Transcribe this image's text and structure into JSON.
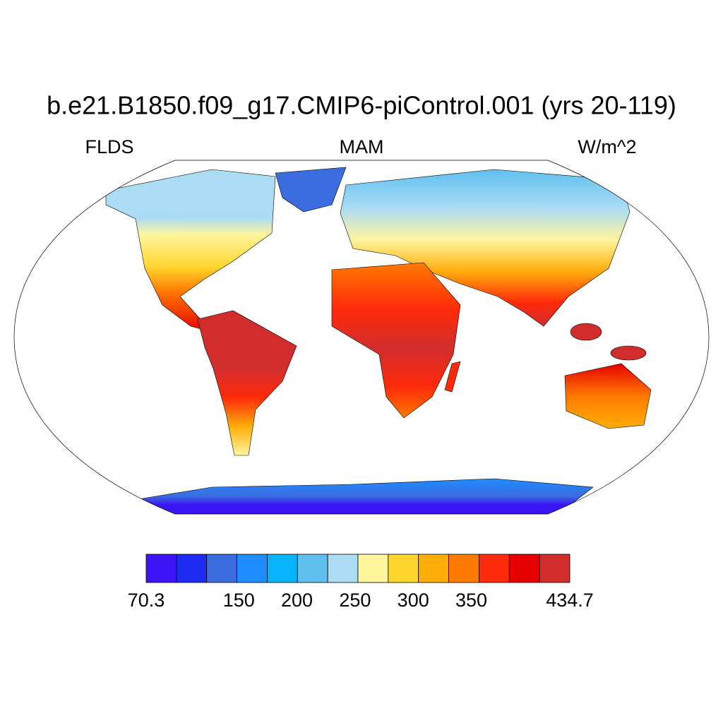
{
  "chart_data": {
    "type": "map",
    "title": "b.e21.B1850.f09_g17.CMIP6-piControl.001 (yrs 20-119)",
    "left_string": "FLDS",
    "center_string": "MAM",
    "right_string": "W/m^2",
    "colorbar": {
      "colors": [
        "#3d14f5",
        "#1e2bf2",
        "#3b6de0",
        "#1f8cff",
        "#07b4fb",
        "#5fc0f0",
        "#acdcf4",
        "#fff59d",
        "#ffd62e",
        "#ffad0a",
        "#ff7a00",
        "#ff2a0a",
        "#e60000",
        "#d22d2d"
      ],
      "lim": [
        70.3,
        434.7
      ],
      "ticks": [
        70.3,
        150,
        200,
        250,
        300,
        350,
        434.7
      ]
    }
  }
}
